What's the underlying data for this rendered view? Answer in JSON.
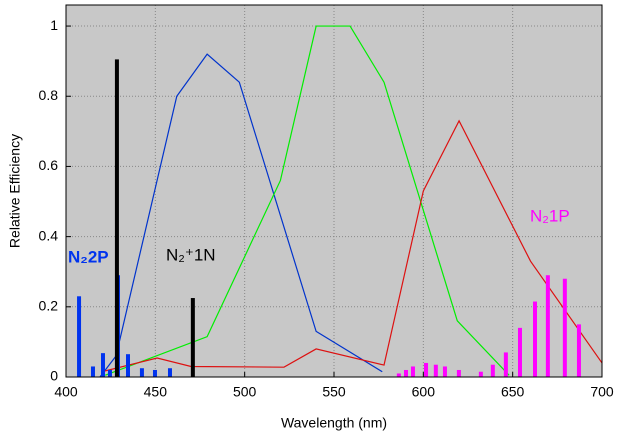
{
  "chart_data": {
    "type": "line",
    "x_label": "Wavelength (nm)",
    "y_label": "Relative Efficiency",
    "xlim": [
      400,
      700
    ],
    "ylim": [
      0,
      1.06
    ],
    "xticks": [
      400,
      450,
      500,
      550,
      600,
      650,
      700
    ],
    "yticks": [
      0,
      0.2,
      0.4,
      0.6,
      0.8,
      1
    ],
    "grid": true,
    "series": [
      {
        "style": "line",
        "color": "#0033cc",
        "x": [
          419,
          428,
          462,
          479,
          497,
          540,
          577
        ],
        "values": [
          0,
          0.06,
          0.8,
          0.92,
          0.84,
          0.13,
          0.015
        ]
      },
      {
        "style": "line",
        "color": "#00ee00",
        "x": [
          422,
          479,
          520,
          540,
          559,
          578,
          619,
          648
        ],
        "values": [
          0.005,
          0.115,
          0.56,
          1.0,
          1.0,
          0.84,
          0.16,
          0.005
        ]
      },
      {
        "style": "line",
        "color": "#dd1111",
        "x": [
          420,
          451,
          470,
          522,
          540,
          578,
          600,
          620,
          660,
          700
        ],
        "values": [
          0.015,
          0.054,
          0.03,
          0.028,
          0.08,
          0.034,
          0.53,
          0.73,
          0.33,
          0.04
        ]
      },
      {
        "name": "N₂2P",
        "style": "bar",
        "color": "#0033ee",
        "x": [
          407.3,
          415.1,
          420.7,
          424.6,
          429.1,
          434.7,
          442.5,
          449.8,
          458.2
        ],
        "values": [
          0.23,
          0.03,
          0.068,
          0.02,
          0.29,
          0.065,
          0.025,
          0.02,
          0.025
        ]
      },
      {
        "name": "N₂⁺1N",
        "style": "bar",
        "color": "#000000",
        "x": [
          428.5,
          471
        ],
        "values": [
          0.905,
          0.225
        ]
      },
      {
        "name": "N₂1P",
        "style": "bar",
        "color": "#ff00ff",
        "x": [
          586.3,
          590.3,
          594.2,
          601.5,
          607.0,
          612.1,
          619.9,
          632.2,
          638.9,
          646.2,
          654.1,
          662.5,
          669.7,
          679.2,
          687.1
        ],
        "values": [
          0.01,
          0.02,
          0.03,
          0.04,
          0.035,
          0.03,
          0.02,
          0.015,
          0.035,
          0.07,
          0.14,
          0.215,
          0.29,
          0.28,
          0.15
        ]
      }
    ]
  }
}
